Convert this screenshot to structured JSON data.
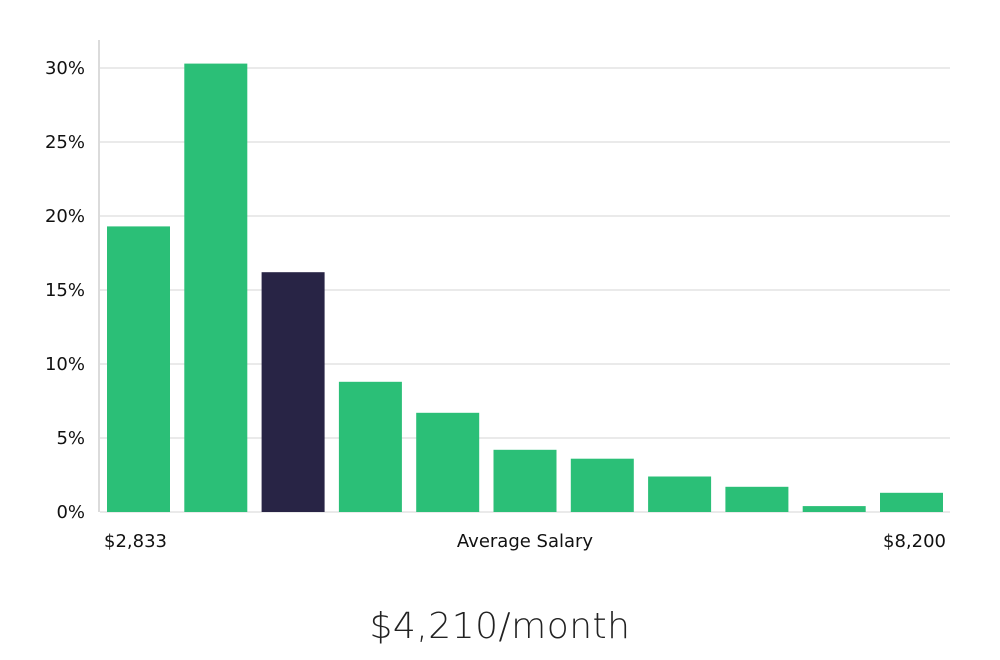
{
  "chart_data": {
    "type": "bar",
    "values": [
      19.3,
      30.3,
      16.2,
      8.8,
      6.7,
      4.2,
      3.6,
      2.4,
      1.7,
      0.4,
      1.3
    ],
    "highlight_index": 2,
    "colors": {
      "bar": "#2bbf77",
      "highlight": "#282445",
      "grid": "#e3e3e3"
    },
    "ylim": [
      0,
      32
    ],
    "y_ticks": [
      0,
      5,
      10,
      15,
      20,
      25,
      30
    ],
    "y_tick_suffix": "%",
    "xlabel": "Average Salary",
    "x_min_label": "$2,833",
    "x_max_label": "$8,200",
    "grid": true
  },
  "caption": "$4,210/month"
}
